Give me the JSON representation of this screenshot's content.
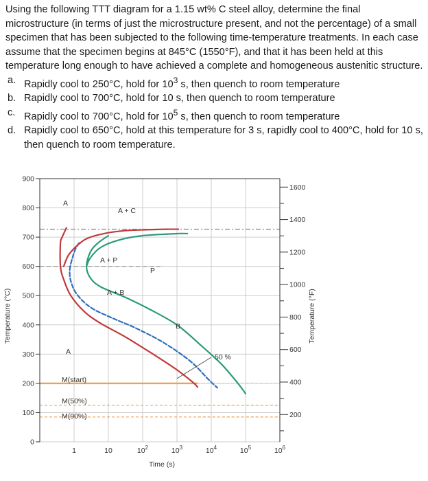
{
  "question": {
    "intro": "Using the following TTT diagram for a 1.15 wt% C steel alloy, determine the final microstructure (in terms of just the microstructure present, and not the percentage) of a small specimen that has been subjected to the following time-temperature treatments. In each case assume that the specimen begins at 845°C (1550°F), and that it has been held at this temperature long enough to have achieved a complete and homogeneous austenitic structure.",
    "items": [
      {
        "marker": "a.",
        "before": "Rapidly cool to 250°C, hold for 10",
        "sup": "3",
        "after": " s, then quench to room temperature"
      },
      {
        "marker": "b.",
        "before": "Rapidly cool to 700°C, hold for 10 s, then quench to room temperature",
        "sup": "",
        "after": ""
      },
      {
        "marker": "c.",
        "before": "Rapidly cool to 700°C, hold for 10",
        "sup": "5",
        "after": " s, then quench to room temperature"
      },
      {
        "marker": "d.",
        "before": "Rapidly cool to 650°C, hold at this temperature for 3 s, rapidly cool to 400°C, hold for 10 s, then quench to room temperature.",
        "sup": "",
        "after": ""
      }
    ]
  },
  "chart_data": {
    "type": "line",
    "title": "",
    "xlabel": "Time (s)",
    "ylabel": "Temperature (°C)",
    "y2label": "Temperature (°F)",
    "x_scale": "log",
    "xlim": [
      0.1,
      1000000
    ],
    "ylim": [
      0,
      900
    ],
    "x_ticks": [
      {
        "value": 1,
        "base": "1",
        "exp": ""
      },
      {
        "value": 10,
        "base": "10",
        "exp": ""
      },
      {
        "value": 100,
        "base": "10",
        "exp": "2"
      },
      {
        "value": 1000,
        "base": "10",
        "exp": "3"
      },
      {
        "value": 10000,
        "base": "10",
        "exp": "4"
      },
      {
        "value": 100000,
        "base": "10",
        "exp": "5"
      },
      {
        "value": 1000000,
        "base": "10",
        "exp": "6"
      }
    ],
    "y_ticks": [
      0,
      100,
      200,
      300,
      400,
      500,
      600,
      700,
      800,
      900
    ],
    "y2_ticks": [
      200,
      400,
      600,
      800,
      1000,
      1200,
      1400,
      1600
    ],
    "grid": true,
    "colors": {
      "start": "#c0393b",
      "fifty": "#2c6fbd",
      "finish": "#2b9b7a",
      "ms": "#f0a050",
      "eutectoid": "#999999",
      "grid": "#cccccc"
    },
    "series": [
      {
        "key": "start",
        "x": [
          0.6,
          0.45,
          0.4,
          0.4,
          0.5,
          0.8,
          2,
          6,
          30,
          200,
          900,
          2500,
          3500,
          4000
        ],
        "y": [
          732,
          700,
          680,
          600,
          555,
          500,
          445,
          405,
          360,
          300,
          250,
          210,
          195,
          187
        ]
      },
      {
        "key": "fifty",
        "x": [
          1.4,
          1.1,
          0.9,
          0.75,
          0.8,
          1.2,
          3,
          12,
          60,
          400,
          2500,
          8000,
          15000
        ],
        "y": [
          680,
          660,
          630,
          590,
          550,
          505,
          460,
          425,
          390,
          340,
          275,
          215,
          185
        ]
      },
      {
        "key": "finish",
        "x": [
          10,
          5,
          3,
          2.3,
          3,
          6,
          30,
          150,
          1000,
          5000,
          20000,
          60000,
          100000
        ],
        "y": [
          705,
          680,
          650,
          600,
          560,
          530,
          495,
          455,
          400,
          330,
          265,
          200,
          165
        ]
      },
      {
        "key": "upper_start",
        "x": [
          0.5,
          0.7,
          1.5,
          3,
          10,
          30,
          100,
          500,
          1100
        ],
        "y": [
          600,
          640,
          680,
          700,
          715,
          722,
          725,
          727,
          727
        ]
      },
      {
        "key": "upper_finish",
        "x": [
          2.3,
          3,
          6,
          20,
          100,
          1000,
          2000
        ],
        "y": [
          600,
          630,
          665,
          690,
          705,
          712,
          712
        ]
      }
    ],
    "horizontal_lines": [
      {
        "key": "eutectoid",
        "y": 727
      },
      {
        "key": "pearlite_bainite_boundary",
        "y": 600
      },
      {
        "key": "ms",
        "y": 200
      },
      {
        "key": "m50",
        "y": 125
      },
      {
        "key": "m90",
        "y": 85
      }
    ],
    "annotations": {
      "austenite_top": "A",
      "a_plus_c": "A + C",
      "a_plus_p": "A + P",
      "p": "P",
      "a_plus_b": "A + B",
      "b": "B",
      "austenite_low": "A",
      "fifty_percent": "50 %",
      "m_start": "M(start)",
      "m_50": "M(50%)",
      "m_90": "M(90%)"
    }
  }
}
